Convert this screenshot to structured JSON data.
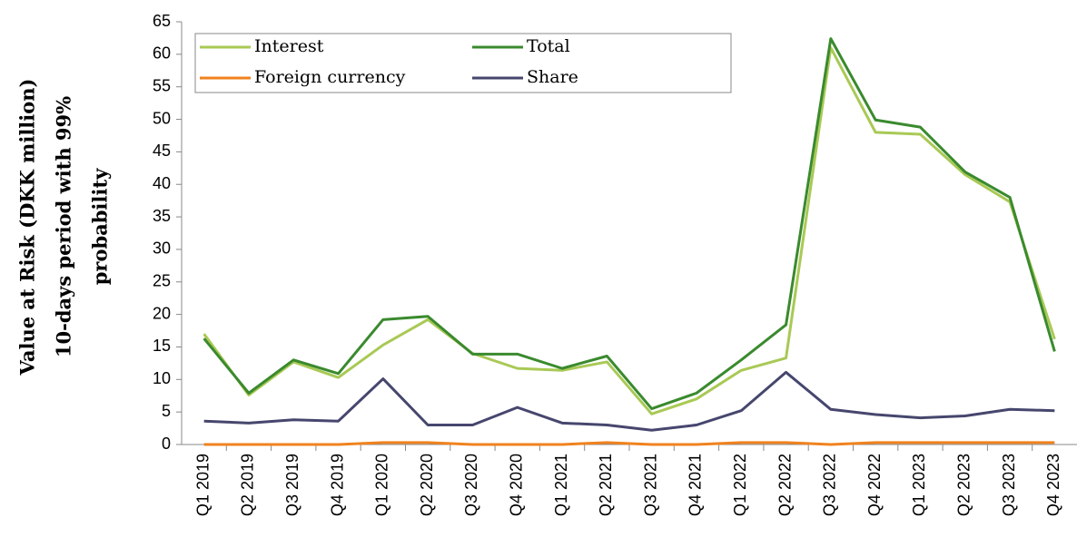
{
  "chart_data": {
    "type": "line",
    "y_label": [
      "Value at Risk (DKK million)",
      "10-days period with 99%",
      "probability"
    ],
    "categories": [
      "Q1 2019",
      "Q2 2019",
      "Q3 2019",
      "Q4 2019",
      "Q1 2020",
      "Q2 2020",
      "Q3 2020",
      "Q4 2020",
      "Q1 2021",
      "Q2 2021",
      "Q3 2021",
      "Q4 2021",
      "Q1 2022",
      "Q2 2022",
      "Q3 2022",
      "Q4 2022",
      "Q1 2023",
      "Q2 2023",
      "Q3 2023",
      "Q4 2023"
    ],
    "series": [
      {
        "name": "Interest",
        "color": "#a9c955",
        "values": [
          17,
          7.6,
          12.7,
          10.3,
          15.3,
          19.2,
          14,
          11.7,
          11.4,
          12.7,
          4.7,
          7,
          11.4,
          13.3,
          61,
          48,
          47.7,
          41.5,
          37.3,
          16.2
        ]
      },
      {
        "name": "Total",
        "color": "#3a8a2e",
        "values": [
          16.3,
          7.9,
          13,
          10.9,
          19.2,
          19.7,
          13.9,
          13.9,
          11.7,
          13.6,
          5.5,
          7.9,
          13,
          18.4,
          62.4,
          49.9,
          48.8,
          41.9,
          38,
          14.3
        ]
      },
      {
        "name": "Foreign currency",
        "color": "#f0821e",
        "values": [
          0,
          0,
          0,
          0,
          0.3,
          0.3,
          0,
          0,
          0,
          0.3,
          0,
          0,
          0.3,
          0.3,
          0,
          0.3,
          0.3,
          0.3,
          0.3,
          0.3
        ]
      },
      {
        "name": "Share",
        "color": "#46466e",
        "values": [
          3.6,
          3.3,
          3.8,
          3.6,
          10.1,
          3,
          3,
          5.7,
          3.3,
          3,
          2.2,
          3,
          5.2,
          11.1,
          5.4,
          4.6,
          4.1,
          4.4,
          5.4,
          5.2
        ]
      }
    ],
    "ylim": [
      0,
      65
    ],
    "yticks": [
      0,
      5,
      10,
      15,
      20,
      25,
      30,
      35,
      40,
      45,
      50,
      55,
      60,
      65
    ],
    "grid": false,
    "legend": "top-left"
  }
}
